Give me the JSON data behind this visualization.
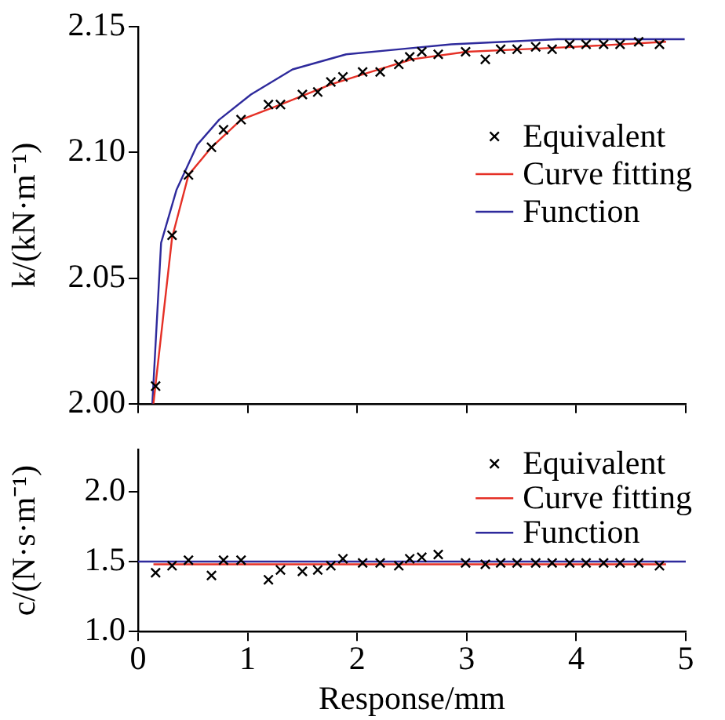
{
  "chart_data": [
    {
      "type": "line",
      "ylabel": "k/(kN·m⁻¹)",
      "xlim": [
        0,
        5
      ],
      "xticks": [
        0,
        1,
        2,
        3,
        4,
        5
      ],
      "ylim": [
        2.0,
        2.15
      ],
      "yticks": [
        {
          "value": 2.0,
          "label": "2.00"
        },
        2.05,
        {
          "value": 2.1,
          "label": "2.10"
        },
        2.15
      ],
      "tick_labels": "y",
      "grid": false,
      "legend": "right",
      "series": [
        {
          "name": "Equivalent",
          "type": "scatter",
          "marker": "cross",
          "color": "#000000",
          "x": [
            0.16,
            0.31,
            0.46,
            0.67,
            0.78,
            0.94,
            1.19,
            1.3,
            1.5,
            1.64,
            1.76,
            1.87,
            2.05,
            2.21,
            2.38,
            2.48,
            2.59,
            2.74,
            2.99,
            3.17,
            3.31,
            3.46,
            3.63,
            3.78,
            3.94,
            4.09,
            4.25,
            4.4,
            4.57,
            4.76
          ],
          "values": [
            2.007,
            2.067,
            2.091,
            2.102,
            2.109,
            2.113,
            2.119,
            2.119,
            2.123,
            2.124,
            2.128,
            2.13,
            2.132,
            2.132,
            2.135,
            2.138,
            2.14,
            2.139,
            2.14,
            2.137,
            2.141,
            2.141,
            2.142,
            2.141,
            2.143,
            2.143,
            2.143,
            2.143,
            2.144,
            2.143
          ]
        },
        {
          "name": "Curve fitting",
          "type": "line",
          "color": "#e53026",
          "x": [
            0.14,
            0.31,
            0.46,
            0.67,
            0.94,
            1.3,
            1.76,
            2.05,
            2.5,
            3.0,
            3.5,
            4.0,
            4.82
          ],
          "values": [
            2.0,
            2.066,
            2.091,
            2.102,
            2.113,
            2.119,
            2.127,
            2.131,
            2.137,
            2.14,
            2.141,
            2.142,
            2.144
          ]
        },
        {
          "name": "Function",
          "type": "line",
          "color": "#2e2a9c",
          "x": [
            0.13,
            0.21,
            0.35,
            0.54,
            0.74,
            1.03,
            1.41,
            1.9,
            2.38,
            2.86,
            3.83,
            4.99
          ],
          "values": [
            2.0,
            2.064,
            2.085,
            2.103,
            2.113,
            2.123,
            2.133,
            2.139,
            2.141,
            2.143,
            2.145,
            2.145
          ]
        }
      ]
    },
    {
      "type": "line",
      "ylabel": "c/(N·s·m⁻¹)",
      "xlabel": "Response/mm",
      "xlim": [
        0,
        5
      ],
      "xticks": [
        0,
        1,
        2,
        3,
        4,
        5
      ],
      "ylim": [
        1.0,
        2.3
      ],
      "yticks": [
        {
          "value": 1.0,
          "label": "1.0"
        },
        1.5,
        {
          "value": 2.0,
          "label": "2.0"
        }
      ],
      "grid": false,
      "legend": "top right",
      "series": [
        {
          "name": "Equivalent",
          "type": "scatter",
          "marker": "cross",
          "color": "#000000",
          "x": [
            0.16,
            0.31,
            0.46,
            0.67,
            0.78,
            0.94,
            1.19,
            1.3,
            1.5,
            1.64,
            1.76,
            1.87,
            2.05,
            2.21,
            2.38,
            2.48,
            2.59,
            2.74,
            2.99,
            3.17,
            3.31,
            3.46,
            3.63,
            3.78,
            3.94,
            4.09,
            4.25,
            4.4,
            4.57,
            4.76
          ],
          "values": [
            1.42,
            1.47,
            1.51,
            1.4,
            1.51,
            1.51,
            1.37,
            1.44,
            1.43,
            1.44,
            1.47,
            1.52,
            1.49,
            1.49,
            1.47,
            1.52,
            1.53,
            1.55,
            1.49,
            1.48,
            1.49,
            1.49,
            1.49,
            1.49,
            1.49,
            1.49,
            1.49,
            1.49,
            1.49,
            1.47
          ]
        },
        {
          "name": "Curve fitting",
          "type": "line",
          "color": "#e53026",
          "x": [
            0.14,
            4.82
          ],
          "values": [
            1.48,
            1.48
          ]
        },
        {
          "name": "Function",
          "type": "line",
          "color": "#2e2a9c",
          "x": [
            0.0,
            5.0
          ],
          "values": [
            1.5,
            1.5
          ]
        }
      ]
    }
  ]
}
